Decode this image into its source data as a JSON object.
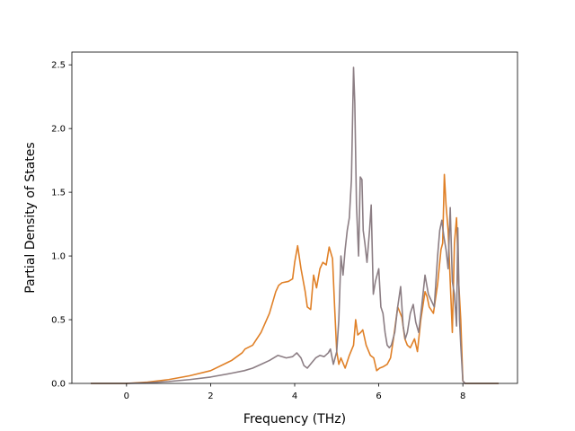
{
  "chart_data": {
    "type": "line",
    "title": "",
    "xlabel": "Frequency (THz)",
    "ylabel": "Partial Density of States",
    "xlim": [
      -1.3,
      9.3
    ],
    "ylim": [
      0.0,
      2.6
    ],
    "xticks": [
      0,
      2,
      4,
      6,
      8
    ],
    "xtick_labels": [
      "0",
      "2",
      "4",
      "6",
      "8"
    ],
    "yticks": [
      0.0,
      0.5,
      1.0,
      1.5,
      2.0,
      2.5
    ],
    "ytick_labels": [
      "0.0",
      "0.5",
      "1.0",
      "1.5",
      "2.0",
      "2.5"
    ],
    "grid": false,
    "legend": "none",
    "series": [
      {
        "color": "#e08027",
        "x": [
          -0.85,
          0.0,
          0.5,
          1.0,
          1.5,
          2.0,
          2.5,
          2.75,
          2.82,
          3.0,
          3.2,
          3.4,
          3.55,
          3.62,
          3.7,
          3.85,
          3.95,
          4.0,
          4.07,
          4.15,
          4.25,
          4.3,
          4.38,
          4.45,
          4.52,
          4.6,
          4.67,
          4.75,
          4.82,
          4.9,
          4.95,
          5.0,
          5.05,
          5.1,
          5.2,
          5.3,
          5.4,
          5.45,
          5.5,
          5.57,
          5.62,
          5.7,
          5.8,
          5.88,
          5.95,
          6.02,
          6.1,
          6.2,
          6.28,
          6.35,
          6.45,
          6.55,
          6.62,
          6.68,
          6.75,
          6.85,
          6.92,
          7.0,
          7.1,
          7.15,
          7.2,
          7.3,
          7.4,
          7.48,
          7.52,
          7.56,
          7.6,
          7.65,
          7.7,
          7.75,
          7.8,
          7.85,
          7.9,
          7.95,
          8.0,
          8.05,
          8.3,
          8.85
        ],
        "y": [
          0.0,
          0.0,
          0.01,
          0.03,
          0.06,
          0.1,
          0.18,
          0.24,
          0.27,
          0.3,
          0.4,
          0.55,
          0.72,
          0.77,
          0.79,
          0.8,
          0.82,
          0.95,
          1.08,
          0.9,
          0.72,
          0.6,
          0.58,
          0.85,
          0.75,
          0.9,
          0.95,
          0.93,
          1.07,
          0.98,
          0.6,
          0.25,
          0.15,
          0.2,
          0.12,
          0.22,
          0.3,
          0.5,
          0.38,
          0.4,
          0.42,
          0.3,
          0.22,
          0.2,
          0.1,
          0.12,
          0.13,
          0.15,
          0.2,
          0.35,
          0.6,
          0.52,
          0.35,
          0.3,
          0.28,
          0.35,
          0.25,
          0.5,
          0.72,
          0.68,
          0.6,
          0.55,
          0.78,
          1.05,
          1.1,
          1.64,
          1.4,
          1.2,
          0.8,
          0.4,
          1.1,
          1.3,
          0.8,
          0.5,
          0.02,
          0.0,
          0.0,
          0.0
        ]
      },
      {
        "color": "#8c7e84",
        "x": [
          -0.85,
          0.0,
          0.5,
          1.0,
          1.5,
          2.0,
          2.5,
          2.8,
          3.0,
          3.2,
          3.4,
          3.6,
          3.8,
          3.95,
          4.05,
          4.15,
          4.22,
          4.3,
          4.4,
          4.5,
          4.6,
          4.7,
          4.8,
          4.85,
          4.92,
          5.0,
          5.05,
          5.1,
          5.15,
          5.2,
          5.25,
          5.3,
          5.35,
          5.4,
          5.43,
          5.47,
          5.52,
          5.56,
          5.6,
          5.63,
          5.67,
          5.72,
          5.78,
          5.82,
          5.87,
          5.92,
          6.0,
          6.05,
          6.1,
          6.15,
          6.2,
          6.25,
          6.3,
          6.38,
          6.45,
          6.52,
          6.58,
          6.63,
          6.68,
          6.75,
          6.82,
          6.88,
          6.95,
          7.02,
          7.1,
          7.18,
          7.25,
          7.32,
          7.4,
          7.45,
          7.5,
          7.55,
          7.6,
          7.65,
          7.7,
          7.75,
          7.8,
          7.85,
          7.88,
          7.92,
          7.95,
          8.0,
          8.05,
          8.3,
          8.85
        ],
        "y": [
          0.0,
          0.0,
          0.005,
          0.015,
          0.03,
          0.05,
          0.08,
          0.1,
          0.12,
          0.15,
          0.18,
          0.22,
          0.2,
          0.21,
          0.24,
          0.2,
          0.14,
          0.12,
          0.16,
          0.2,
          0.22,
          0.21,
          0.24,
          0.27,
          0.15,
          0.25,
          0.5,
          1.0,
          0.85,
          1.05,
          1.2,
          1.3,
          1.6,
          2.48,
          2.2,
          1.4,
          1.0,
          1.62,
          1.6,
          1.2,
          1.1,
          0.95,
          1.2,
          1.4,
          0.7,
          0.8,
          0.9,
          0.6,
          0.55,
          0.4,
          0.3,
          0.28,
          0.3,
          0.4,
          0.6,
          0.76,
          0.45,
          0.35,
          0.4,
          0.55,
          0.62,
          0.48,
          0.4,
          0.6,
          0.85,
          0.7,
          0.65,
          0.6,
          1.0,
          1.2,
          1.28,
          1.15,
          1.05,
          0.9,
          1.38,
          0.8,
          0.7,
          0.45,
          1.22,
          0.5,
          0.3,
          0.02,
          0.0,
          0.0,
          0.0
        ]
      }
    ]
  }
}
